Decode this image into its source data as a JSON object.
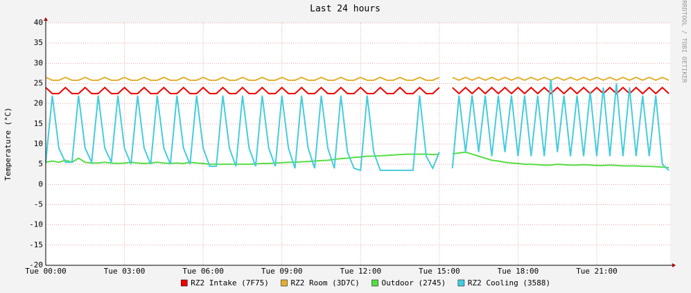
{
  "chart_data": {
    "type": "line",
    "title": "Last 24 hours",
    "y_label": "Temperature (°C)",
    "side_label": "RRDTOOL / TOBI OETIKER",
    "x": [
      0,
      0.25,
      0.5,
      0.75,
      1,
      1.25,
      1.5,
      1.75,
      2,
      2.25,
      2.5,
      2.75,
      3,
      3.25,
      3.5,
      3.75,
      4,
      4.25,
      4.5,
      4.75,
      5,
      5.25,
      5.5,
      5.75,
      6,
      6.25,
      6.5,
      6.75,
      7,
      7.25,
      7.5,
      7.75,
      8,
      8.25,
      8.5,
      8.75,
      9,
      9.25,
      9.5,
      9.75,
      10,
      10.25,
      10.5,
      10.75,
      11,
      11.25,
      11.5,
      11.75,
      12,
      12.25,
      12.5,
      12.75,
      13,
      13.25,
      13.5,
      13.75,
      14,
      14.25,
      14.5,
      14.75,
      15,
      15.25,
      15.5,
      15.75,
      16,
      16.25,
      16.5,
      16.75,
      17,
      17.25,
      17.5,
      17.75,
      18,
      18.25,
      18.5,
      18.75,
      19,
      19.25,
      19.5,
      19.75,
      20,
      20.25,
      20.5,
      20.75,
      21,
      21.25,
      21.5,
      21.75,
      22,
      22.25,
      22.5,
      22.75,
      23,
      23.25,
      23.5,
      23.75
    ],
    "xlim": [
      0,
      23.8
    ],
    "xticks": [
      {
        "value": 0,
        "label": "Tue 00:00"
      },
      {
        "value": 3,
        "label": "Tue 03:00"
      },
      {
        "value": 6,
        "label": "Tue 06:00"
      },
      {
        "value": 9,
        "label": "Tue 09:00"
      },
      {
        "value": 12,
        "label": "Tue 12:00"
      },
      {
        "value": 15,
        "label": "Tue 15:00"
      },
      {
        "value": 18,
        "label": "Tue 18:00"
      },
      {
        "value": 21,
        "label": "Tue 21:00"
      }
    ],
    "ylim": [
      -20,
      40
    ],
    "yticks": [
      -20,
      -15,
      -10,
      -5,
      0,
      5,
      10,
      15,
      20,
      25,
      30,
      35,
      40
    ],
    "grid": true,
    "series": [
      {
        "name": "RZ2 Intake (7F75)",
        "color": "#ee0000",
        "values": [
          24,
          22.5,
          22.5,
          24,
          22.5,
          22.5,
          24,
          22.5,
          22.5,
          24,
          22.5,
          22.5,
          24,
          22.5,
          22.5,
          24,
          22.5,
          22.5,
          24,
          22.5,
          22.5,
          24,
          22.5,
          22.5,
          24,
          22.5,
          22.5,
          24,
          22.5,
          22.5,
          24,
          22.5,
          22.5,
          24,
          22.5,
          22.5,
          24,
          22.5,
          22.5,
          24,
          22.5,
          22.5,
          24,
          22.5,
          22.5,
          24,
          22.5,
          22.5,
          24,
          22.5,
          22.5,
          24,
          22.5,
          22.5,
          24,
          22.5,
          22.5,
          24,
          22.5,
          22.5,
          24,
          null,
          24,
          22.5,
          24,
          22.5,
          24,
          22.5,
          24,
          22.5,
          24,
          22.5,
          24,
          22.5,
          24,
          22.5,
          24,
          22.5,
          24,
          22.5,
          24,
          22.5,
          24,
          22.5,
          24,
          22.5,
          24,
          22.5,
          24,
          22.5,
          24,
          22.5,
          24,
          22.5,
          24,
          22.5
        ]
      },
      {
        "name": "RZ2 Room (3D7C)",
        "color": "#e0b030",
        "values": [
          26.5,
          25.8,
          25.8,
          26.5,
          25.8,
          25.8,
          26.5,
          25.8,
          25.8,
          26.5,
          25.8,
          25.8,
          26.5,
          25.8,
          25.8,
          26.5,
          25.8,
          25.8,
          26.5,
          25.8,
          25.8,
          26.5,
          25.8,
          25.8,
          26.5,
          25.8,
          25.8,
          26.5,
          25.8,
          25.8,
          26.5,
          25.8,
          25.8,
          26.5,
          25.8,
          25.8,
          26.5,
          25.8,
          25.8,
          26.5,
          25.8,
          25.8,
          26.5,
          25.8,
          25.8,
          26.5,
          25.8,
          25.8,
          26.5,
          25.8,
          25.8,
          26.5,
          25.8,
          25.8,
          26.5,
          25.8,
          25.8,
          26.5,
          25.8,
          25.8,
          26.5,
          null,
          26.5,
          25.8,
          26.5,
          25.8,
          26.5,
          25.8,
          26.5,
          25.8,
          26.5,
          25.8,
          26.5,
          25.8,
          26.5,
          25.8,
          26.5,
          25.8,
          26.5,
          25.8,
          26.5,
          25.8,
          26.5,
          25.8,
          26.5,
          25.8,
          26.5,
          25.8,
          26.5,
          25.8,
          26.5,
          25.8,
          26.5,
          25.8,
          26.5,
          25.8
        ]
      },
      {
        "name": "Outdoor (2745)",
        "color": "#55dd44",
        "values": [
          5.5,
          5.8,
          5.5,
          6,
          5.5,
          6.5,
          5.5,
          5.3,
          5.3,
          5.5,
          5.3,
          5.2,
          5.3,
          5.5,
          5.3,
          5.2,
          5.3,
          5.5,
          5.3,
          5.2,
          5.3,
          5.2,
          5.5,
          5.3,
          5.2,
          5,
          5,
          5,
          5,
          5,
          5,
          5,
          5.1,
          5.2,
          5.2,
          5.3,
          5.4,
          5.5,
          5.5,
          5.6,
          5.7,
          5.8,
          5.9,
          6,
          6.2,
          6.4,
          6.5,
          6.7,
          6.8,
          7,
          7,
          7.1,
          7.2,
          7.3,
          7.4,
          7.5,
          7.5,
          7.5,
          7.5,
          7.4,
          7.5,
          null,
          7.6,
          7.8,
          8,
          7.5,
          7,
          6.5,
          6,
          5.8,
          5.5,
          5.3,
          5.2,
          5,
          5,
          4.9,
          4.8,
          4.8,
          5,
          4.9,
          4.8,
          4.8,
          4.9,
          4.8,
          4.7,
          4.7,
          4.8,
          4.7,
          4.6,
          4.6,
          4.6,
          4.5,
          4.5,
          4.4,
          4.3,
          4.2
        ]
      },
      {
        "name": "RZ2 Cooling (3588)",
        "color": "#44ccdd",
        "values": [
          5.5,
          22,
          9,
          5.5,
          5.5,
          22,
          9,
          5.5,
          22,
          9,
          5.5,
          22,
          9,
          5,
          22,
          9,
          5,
          22,
          9,
          5,
          22,
          9,
          5,
          22,
          9,
          4.5,
          4.5,
          22,
          9,
          4.5,
          22,
          9,
          4.5,
          22,
          9,
          4.5,
          22,
          9,
          4,
          22,
          9,
          4,
          22,
          9,
          4,
          22,
          8,
          4,
          3.5,
          22,
          8,
          3.5,
          3.5,
          3.5,
          3.5,
          3.5,
          3.5,
          22,
          7,
          4,
          8,
          null,
          4,
          22,
          8,
          22,
          8,
          22,
          7,
          22,
          8,
          22,
          7,
          22,
          7,
          22,
          7,
          26,
          8,
          22,
          7,
          22,
          7,
          23,
          7,
          24,
          7,
          25,
          7,
          24,
          7,
          22,
          7,
          22,
          5,
          3.5
        ]
      }
    ]
  }
}
